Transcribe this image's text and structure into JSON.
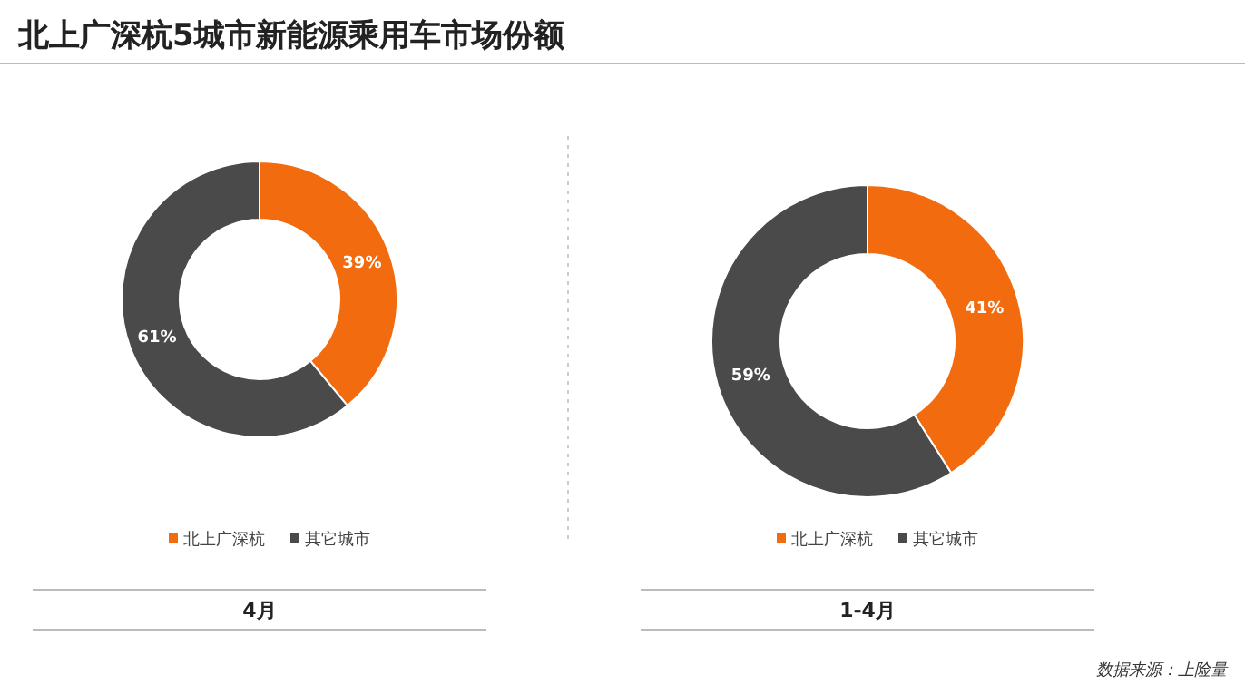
{
  "chart_data": [
    {
      "type": "other",
      "title": "北上广深杭5城市新能源乘用车市场份额",
      "annotations": [
        "数据来源：上险量"
      ]
    },
    {
      "type": "donut",
      "title": "4月",
      "categories": [
        "北上广深杭",
        "其它城市"
      ],
      "values": [
        39,
        61
      ],
      "value_labels": [
        "39%",
        "61%"
      ],
      "colors": [
        "#f26b0f",
        "#4a4a4a"
      ],
      "legend": "bottom"
    },
    {
      "type": "donut",
      "title": "1-4月",
      "categories": [
        "北上广深杭",
        "其它城市"
      ],
      "values": [
        41,
        59
      ],
      "value_labels": [
        "41%",
        "59%"
      ],
      "colors": [
        "#f26b0f",
        "#4a4a4a"
      ],
      "legend": "bottom"
    }
  ]
}
